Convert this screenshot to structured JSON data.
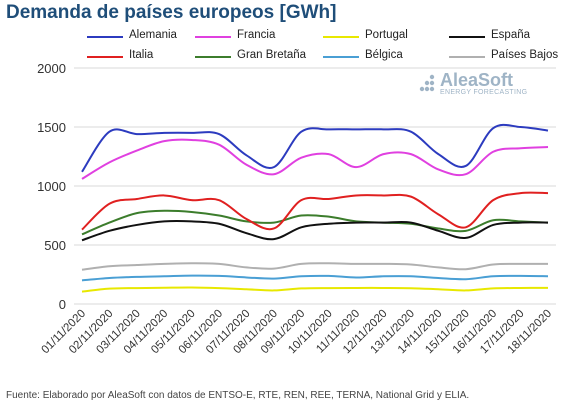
{
  "chart_data": {
    "type": "line",
    "title": "Demanda de países europeos [GWh]",
    "xlabel": "",
    "ylabel": "",
    "ylim": [
      0,
      2000
    ],
    "yticks": [
      0,
      500,
      1000,
      1500,
      2000
    ],
    "grid": true,
    "legend_position": "top",
    "x": [
      "01/11/2020",
      "02/11/2020",
      "03/11/2020",
      "04/11/2020",
      "05/11/2020",
      "06/11/2020",
      "07/11/2020",
      "08/11/2020",
      "09/11/2020",
      "10/11/2020",
      "11/11/2020",
      "12/11/2020",
      "13/11/2020",
      "14/11/2020",
      "15/11/2020",
      "16/11/2020",
      "17/11/2020",
      "18/11/2020"
    ],
    "series": [
      {
        "name": "Alemania",
        "color": "#2c3bbf",
        "values": [
          1120,
          1460,
          1440,
          1450,
          1450,
          1440,
          1260,
          1160,
          1460,
          1480,
          1480,
          1480,
          1460,
          1270,
          1170,
          1490,
          1500,
          1470
        ]
      },
      {
        "name": "Francia",
        "color": "#e040e0",
        "values": [
          1060,
          1200,
          1300,
          1380,
          1390,
          1350,
          1180,
          1100,
          1240,
          1270,
          1160,
          1270,
          1270,
          1140,
          1100,
          1290,
          1320,
          1330
        ]
      },
      {
        "name": "Portugal",
        "color": "#e8e800",
        "values": [
          105,
          130,
          135,
          138,
          140,
          135,
          125,
          115,
          132,
          135,
          136,
          136,
          134,
          125,
          115,
          132,
          136,
          137
        ]
      },
      {
        "name": "España",
        "color": "#111111",
        "values": [
          540,
          620,
          670,
          700,
          700,
          680,
          600,
          550,
          650,
          680,
          690,
          690,
          690,
          620,
          560,
          670,
          690,
          690
        ]
      },
      {
        "name": "Italia",
        "color": "#e02020",
        "values": [
          630,
          850,
          890,
          920,
          880,
          880,
          720,
          640,
          880,
          890,
          920,
          920,
          910,
          760,
          650,
          880,
          940,
          940
        ]
      },
      {
        "name": "Gran Bretaña",
        "color": "#3c7d2c",
        "values": [
          590,
          690,
          770,
          790,
          780,
          750,
          700,
          690,
          750,
          740,
          700,
          690,
          680,
          640,
          620,
          710,
          700,
          690
        ]
      },
      {
        "name": "Bélgica",
        "color": "#4a9fd4",
        "values": [
          200,
          220,
          230,
          235,
          240,
          238,
          225,
          215,
          235,
          238,
          225,
          235,
          235,
          220,
          210,
          235,
          238,
          235
        ]
      },
      {
        "name": "Países Bajos",
        "color": "#b0b0b0",
        "values": [
          290,
          320,
          330,
          340,
          345,
          340,
          310,
          300,
          340,
          345,
          340,
          340,
          335,
          310,
          295,
          335,
          340,
          340
        ]
      }
    ]
  },
  "footer": "Fuente: Elaborado por AleaSoft con datos de ENTSO-E, RTE, REN, REE, TERNA, National Grid y ELIA.",
  "logo": {
    "name": "AleaSoft",
    "tagline": "ENERGY FORECASTING"
  }
}
